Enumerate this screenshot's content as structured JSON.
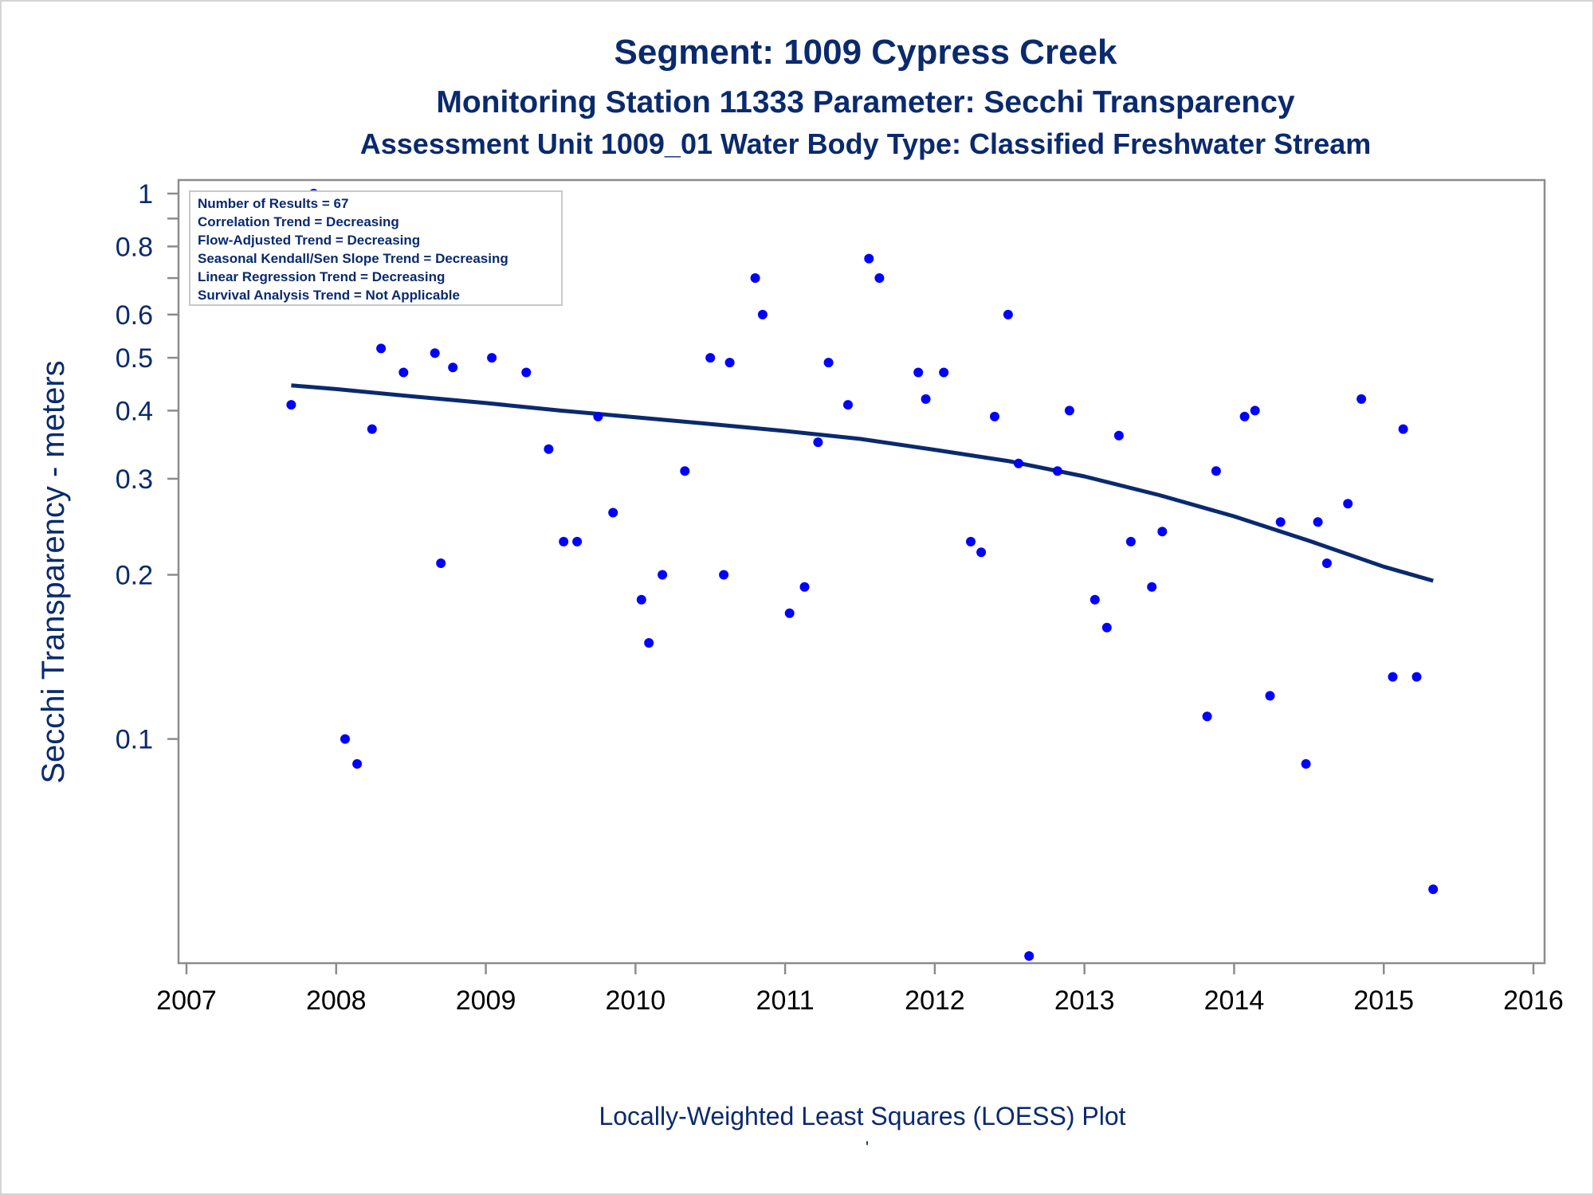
{
  "titles": {
    "line1": "Segment: 1009  Cypress Creek",
    "line2": "Monitoring Station 11333 Parameter: Secchi Transparency",
    "line3": "Assessment Unit 1009_01   Water Body Type: Classified Freshwater Stream"
  },
  "footnote": "Locally-Weighted Least Squares (LOESS) Plot",
  "footnote_mark": "'",
  "stats_box": {
    "lines": [
      "Number of Results = 67",
      "Correlation Trend = Decreasing",
      "Flow-Adjusted Trend = Decreasing",
      "Seasonal Kendall/Sen Slope Trend = Decreasing",
      "Linear Regression Trend = Decreasing",
      "Survival Analysis Trend = Not Applicable"
    ]
  },
  "colors": {
    "text": "#0a2a6e",
    "points": "#0000ff",
    "loess_line": "#0a2a6e",
    "axis": "#8c8c8c"
  },
  "chart_data": {
    "type": "scatter",
    "title": "Segment: 1009  Cypress Creek",
    "xlabel": "",
    "ylabel": "Secchi Transparency - meters",
    "x_scale": "linear",
    "y_scale": "log",
    "xlim": [
      2007,
      2016
    ],
    "ylim": [
      0.04,
      1.0
    ],
    "x_ticks": [
      "2007",
      "2008",
      "2009",
      "2010",
      "2011",
      "2012",
      "2013",
      "2014",
      "2015",
      "2016"
    ],
    "y_ticks": [
      {
        "value": 1.0,
        "label": "1"
      },
      {
        "value": 0.8,
        "label": "0.8"
      },
      {
        "value": 0.6,
        "label": "0.6"
      },
      {
        "value": 0.5,
        "label": "0.5"
      },
      {
        "value": 0.4,
        "label": "0.4"
      },
      {
        "value": 0.3,
        "label": "0.3"
      },
      {
        "value": 0.2,
        "label": "0.2"
      },
      {
        "value": 0.1,
        "label": "0.1"
      }
    ],
    "y_minor_ticks": [
      0.9,
      0.7
    ],
    "grid": false,
    "legend": "none",
    "points": [
      [
        2007.7,
        0.41
      ],
      [
        2007.77,
        0.7
      ],
      [
        2007.85,
        1.0
      ],
      [
        2008.06,
        0.1
      ],
      [
        2008.14,
        0.09
      ],
      [
        2008.24,
        0.37
      ],
      [
        2008.3,
        0.52
      ],
      [
        2008.45,
        0.47
      ],
      [
        2008.66,
        0.51
      ],
      [
        2008.7,
        0.21
      ],
      [
        2008.78,
        0.48
      ],
      [
        2008.85,
        0.71
      ],
      [
        2009.04,
        0.5
      ],
      [
        2009.27,
        0.47
      ],
      [
        2009.42,
        0.34
      ],
      [
        2009.52,
        0.23
      ],
      [
        2009.61,
        0.23
      ],
      [
        2009.75,
        0.39
      ],
      [
        2009.85,
        0.26
      ],
      [
        2010.04,
        0.18
      ],
      [
        2010.09,
        0.15
      ],
      [
        2010.18,
        0.2
      ],
      [
        2010.33,
        0.31
      ],
      [
        2010.5,
        0.5
      ],
      [
        2010.59,
        0.2
      ],
      [
        2010.63,
        0.49
      ],
      [
        2010.8,
        0.7
      ],
      [
        2010.85,
        0.6
      ],
      [
        2011.03,
        0.17
      ],
      [
        2011.13,
        0.19
      ],
      [
        2011.22,
        0.35
      ],
      [
        2011.29,
        0.49
      ],
      [
        2011.42,
        0.41
      ],
      [
        2011.56,
        0.76
      ],
      [
        2011.63,
        0.7
      ],
      [
        2011.89,
        0.47
      ],
      [
        2011.94,
        0.42
      ],
      [
        2012.06,
        0.47
      ],
      [
        2012.24,
        0.23
      ],
      [
        2012.31,
        0.22
      ],
      [
        2012.4,
        0.39
      ],
      [
        2012.49,
        0.6
      ],
      [
        2012.56,
        0.32
      ],
      [
        2012.63,
        0.04
      ],
      [
        2012.82,
        0.31
      ],
      [
        2012.9,
        0.4
      ],
      [
        2013.07,
        0.18
      ],
      [
        2013.15,
        0.16
      ],
      [
        2013.23,
        0.36
      ],
      [
        2013.31,
        0.23
      ],
      [
        2013.45,
        0.19
      ],
      [
        2013.52,
        0.24
      ],
      [
        2013.82,
        0.11
      ],
      [
        2013.88,
        0.31
      ],
      [
        2014.07,
        0.39
      ],
      [
        2014.14,
        0.4
      ],
      [
        2014.24,
        0.12
      ],
      [
        2014.31,
        0.25
      ],
      [
        2014.48,
        0.09
      ],
      [
        2014.56,
        0.25
      ],
      [
        2014.62,
        0.21
      ],
      [
        2014.76,
        0.27
      ],
      [
        2014.85,
        0.42
      ],
      [
        2015.06,
        0.13
      ],
      [
        2015.13,
        0.37
      ],
      [
        2015.22,
        0.13
      ],
      [
        2015.33,
        0.053
      ]
    ],
    "loess": [
      [
        2007.7,
        0.445
      ],
      [
        2008.0,
        0.438
      ],
      [
        2008.5,
        0.425
      ],
      [
        2009.0,
        0.413
      ],
      [
        2009.5,
        0.4
      ],
      [
        2010.0,
        0.389
      ],
      [
        2010.5,
        0.378
      ],
      [
        2011.0,
        0.367
      ],
      [
        2011.5,
        0.355
      ],
      [
        2012.0,
        0.339
      ],
      [
        2012.5,
        0.323
      ],
      [
        2013.0,
        0.303
      ],
      [
        2013.5,
        0.28
      ],
      [
        2014.0,
        0.256
      ],
      [
        2014.5,
        0.231
      ],
      [
        2015.0,
        0.207
      ],
      [
        2015.33,
        0.195
      ]
    ]
  }
}
